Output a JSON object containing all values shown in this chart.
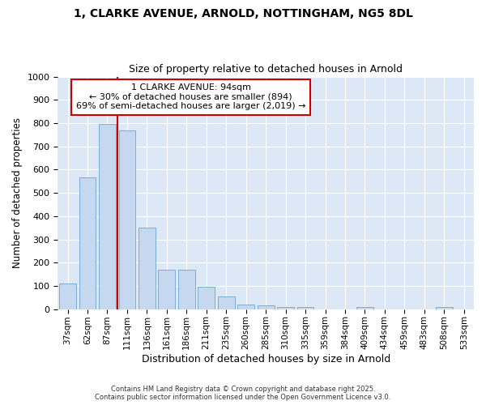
{
  "title_line1": "1, CLARKE AVENUE, ARNOLD, NOTTINGHAM, NG5 8DL",
  "title_line2": "Size of property relative to detached houses in Arnold",
  "xlabel": "Distribution of detached houses by size in Arnold",
  "ylabel": "Number of detached properties",
  "categories": [
    "37sqm",
    "62sqm",
    "87sqm",
    "111sqm",
    "136sqm",
    "161sqm",
    "186sqm",
    "211sqm",
    "235sqm",
    "260sqm",
    "285sqm",
    "310sqm",
    "335sqm",
    "359sqm",
    "384sqm",
    "409sqm",
    "434sqm",
    "459sqm",
    "483sqm",
    "508sqm",
    "533sqm"
  ],
  "values": [
    112,
    565,
    795,
    770,
    350,
    168,
    168,
    97,
    55,
    20,
    15,
    10,
    8,
    0,
    0,
    8,
    0,
    0,
    0,
    8,
    0
  ],
  "bar_color": "#c5d8f0",
  "bar_edge_color": "#7aaed4",
  "vline_x": 2.5,
  "vline_color": "#cc0000",
  "annotation_title": "1 CLARKE AVENUE: 94sqm",
  "annotation_line1": "← 30% of detached houses are smaller (894)",
  "annotation_line2": "69% of semi-detached houses are larger (2,019) →",
  "annotation_box_color": "#ffffff",
  "annotation_box_edge": "#cc0000",
  "ylim": [
    0,
    1000
  ],
  "plot_bg_color": "#dce8f5",
  "fig_bg_color": "#ffffff",
  "grid_color": "#ffffff",
  "footer": "Contains HM Land Registry data © Crown copyright and database right 2025.\nContains public sector information licensed under the Open Government Licence v3.0."
}
